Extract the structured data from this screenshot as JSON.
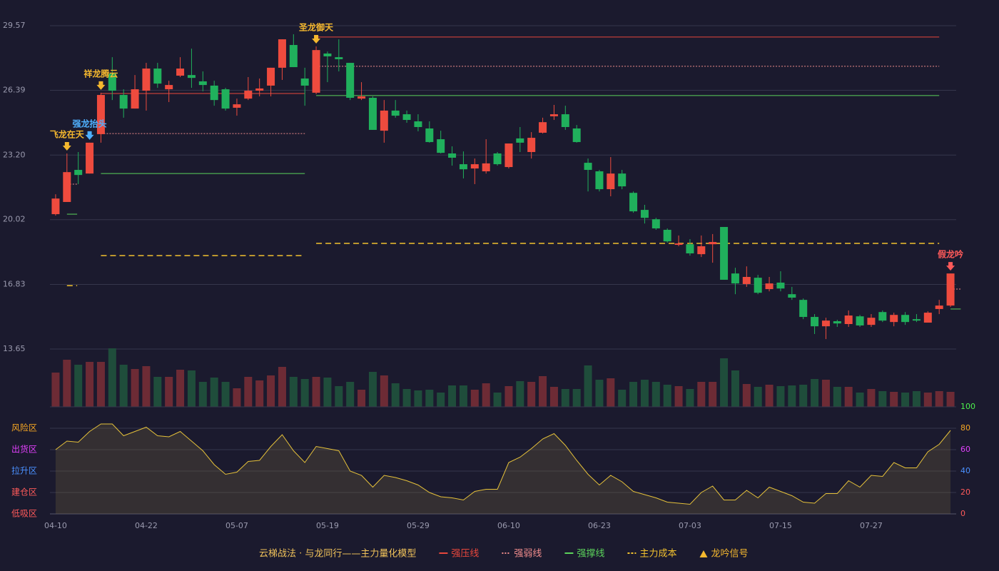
{
  "chart_data": [
    {
      "type": "candlestick",
      "legend_title": "云梯战法 · 与龙同行——主力量化模型",
      "categories": [
        "04-10",
        null,
        null,
        null,
        null,
        null,
        null,
        null,
        "04-22",
        null,
        null,
        null,
        null,
        null,
        null,
        null,
        "05-07",
        null,
        null,
        null,
        null,
        null,
        null,
        null,
        "05-19",
        null,
        null,
        null,
        null,
        null,
        null,
        null,
        "05-29",
        null,
        null,
        null,
        null,
        null,
        null,
        null,
        "06-10",
        null,
        null,
        null,
        null,
        null,
        null,
        null,
        "06-23",
        null,
        null,
        null,
        null,
        null,
        null,
        null,
        "07-03",
        null,
        null,
        null,
        null,
        null,
        null,
        null,
        "07-15",
        null,
        null,
        null,
        null,
        null,
        null,
        null,
        "07-27",
        null,
        null,
        null,
        null,
        null,
        null,
        null
      ],
      "ohlc": [
        [
          20.29,
          21.06,
          20.22,
          21.27
        ],
        [
          20.89,
          22.36,
          20.89,
          23.28
        ],
        [
          22.47,
          22.22,
          21.77,
          23.35
        ],
        [
          22.29,
          23.81,
          22.29,
          23.81
        ],
        [
          24.23,
          26.16,
          23.81,
          26.27
        ],
        [
          27.21,
          26.37,
          25.91,
          28.02
        ],
        [
          26.16,
          25.49,
          25.04,
          26.44
        ],
        [
          25.49,
          26.44,
          25.49,
          27.14
        ],
        [
          26.37,
          27.46,
          25.39,
          27.74
        ],
        [
          27.46,
          26.72,
          26.51,
          27.74
        ],
        [
          26.44,
          26.65,
          25.81,
          26.86
        ],
        [
          27.11,
          27.46,
          27.04,
          28.02
        ],
        [
          27.14,
          27.0,
          26.51,
          28.44
        ],
        [
          26.83,
          26.65,
          26.34,
          27.32
        ],
        [
          26.62,
          25.91,
          25.63,
          26.86
        ],
        [
          26.44,
          25.49,
          25.39,
          26.51
        ],
        [
          25.53,
          25.7,
          25.14,
          25.98
        ],
        [
          25.98,
          26.37,
          25.91,
          27.04
        ],
        [
          26.37,
          26.48,
          26.09,
          26.97
        ],
        [
          26.62,
          27.5,
          26.09,
          27.5
        ],
        [
          27.5,
          28.9,
          26.9,
          28.9
        ],
        [
          28.62,
          27.53,
          27.53,
          29.15
        ],
        [
          26.97,
          26.62,
          25.63,
          27.5
        ],
        [
          26.27,
          28.37,
          26.2,
          28.55
        ],
        [
          28.2,
          28.06,
          26.79,
          28.3
        ],
        [
          28.02,
          27.92,
          27.32,
          28.9
        ],
        [
          27.74,
          26.02,
          25.91,
          27.74
        ],
        [
          25.98,
          26.09,
          25.91,
          26.79
        ],
        [
          26.02,
          24.44,
          24.44,
          26.09
        ],
        [
          24.4,
          25.39,
          23.81,
          25.91
        ],
        [
          25.39,
          25.14,
          25.04,
          25.91
        ],
        [
          25.21,
          24.93,
          24.79,
          25.39
        ],
        [
          24.86,
          24.58,
          24.37,
          25.21
        ],
        [
          24.51,
          23.84,
          23.81,
          24.86
        ],
        [
          23.98,
          23.31,
          23.28,
          24.4
        ],
        [
          23.28,
          23.07,
          22.68,
          23.63
        ],
        [
          22.75,
          22.5,
          22.05,
          23.38
        ],
        [
          22.54,
          22.75,
          21.77,
          23.03
        ],
        [
          22.4,
          22.79,
          22.29,
          23.98
        ],
        [
          23.28,
          22.75,
          22.68,
          23.35
        ],
        [
          22.61,
          23.77,
          22.54,
          23.77
        ],
        [
          24.02,
          23.81,
          23.35,
          24.58
        ],
        [
          23.35,
          24.05,
          23.03,
          24.33
        ],
        [
          24.3,
          24.82,
          24.26,
          25.04
        ],
        [
          25.11,
          25.21,
          24.93,
          25.67
        ],
        [
          25.21,
          24.58,
          24.44,
          25.63
        ],
        [
          24.51,
          23.84,
          23.81,
          24.68
        ],
        [
          22.82,
          22.47,
          21.41,
          23.03
        ],
        [
          22.4,
          21.52,
          21.41,
          22.47
        ],
        [
          21.52,
          22.29,
          21.17,
          23.1
        ],
        [
          22.29,
          21.66,
          21.52,
          22.47
        ],
        [
          21.34,
          20.43,
          20.36,
          21.41
        ],
        [
          20.5,
          20.11,
          19.83,
          20.75
        ],
        [
          20.04,
          19.59,
          19.52,
          20.11
        ],
        [
          19.52,
          18.95,
          18.88,
          19.59
        ],
        [
          18.78,
          18.85,
          18.71,
          19.24
        ],
        [
          18.81,
          18.36,
          18.25,
          19.06
        ],
        [
          18.32,
          18.71,
          18.18,
          19.24
        ],
        [
          18.81,
          18.92,
          17.9,
          19.31
        ],
        [
          19.66,
          17.06,
          17.06,
          19.66
        ],
        [
          17.37,
          16.88,
          16.35,
          17.65
        ],
        [
          16.85,
          17.2,
          16.71,
          17.72
        ],
        [
          17.16,
          16.42,
          16.35,
          17.3
        ],
        [
          16.6,
          16.88,
          16.49,
          17.2
        ],
        [
          16.92,
          16.63,
          16.49,
          17.48
        ],
        [
          16.35,
          16.18,
          16.07,
          16.71
        ],
        [
          16.07,
          15.23,
          15.12,
          16.14
        ],
        [
          15.23,
          14.77,
          14.39,
          15.37
        ],
        [
          14.77,
          15.05,
          14.14,
          15.19
        ],
        [
          15.02,
          14.91,
          14.74,
          15.09
        ],
        [
          14.88,
          15.3,
          14.74,
          15.55
        ],
        [
          15.26,
          14.81,
          14.74,
          15.33
        ],
        [
          14.84,
          15.19,
          14.74,
          15.37
        ],
        [
          15.47,
          15.05,
          14.98,
          15.55
        ],
        [
          14.98,
          15.33,
          14.77,
          15.44
        ],
        [
          15.33,
          14.98,
          14.84,
          15.47
        ],
        [
          15.12,
          15.05,
          14.98,
          15.37
        ],
        [
          14.95,
          15.44,
          14.95,
          15.51
        ],
        [
          15.62,
          15.79,
          15.37,
          16.07
        ],
        [
          15.79,
          17.37,
          15.72,
          17.37
        ]
      ],
      "up_color": "#ee4b3e",
      "down_color": "#20b05c",
      "ylim": [
        13.65,
        29.57
      ],
      "yticks": [
        13.65,
        16.83,
        {
          "value": 20.02,
          "label": "20.02"
        },
        {
          "value": 23.2,
          "label": "23.20"
        },
        26.39,
        29.57
      ],
      "grid": true,
      "levels": [
        {
          "name": "强压线",
          "color": "#e8473c",
          "dash": "solid",
          "values": [
            null,
            null,
            null,
            null,
            26.23,
            26.23,
            26.23,
            26.23,
            26.23,
            26.23,
            26.23,
            26.23,
            26.23,
            26.23,
            26.23,
            26.23,
            26.23,
            26.23,
            26.23,
            26.23,
            26.23,
            26.23,
            26.23,
            29.01,
            29.01,
            29.01,
            29.01,
            29.01,
            29.01,
            29.01,
            29.01,
            29.01,
            29.01,
            29.01,
            29.01,
            29.01,
            29.01,
            29.01,
            29.01,
            29.01,
            29.01,
            29.01,
            29.01,
            29.01,
            29.01,
            29.01,
            29.01,
            29.01,
            29.01,
            29.01,
            29.01,
            29.01,
            29.01,
            29.01,
            29.01,
            29.01,
            29.01,
            29.01,
            29.01,
            29.01,
            29.01,
            29.01,
            29.01,
            29.01,
            29.01,
            29.01,
            29.01,
            29.01,
            29.01,
            29.01,
            29.01,
            29.01,
            29.01,
            29.01,
            29.01,
            29.01,
            29.01,
            29.01,
            29.01,
            null
          ]
        },
        {
          "name": "强弱线",
          "color": "#f08c8c",
          "dash": "dot",
          "values": [
            null,
            21.77,
            null,
            null,
            24.26,
            24.26,
            24.26,
            24.26,
            24.26,
            24.26,
            24.26,
            24.26,
            24.26,
            24.26,
            24.26,
            24.26,
            24.26,
            24.26,
            24.26,
            24.26,
            24.26,
            24.26,
            24.26,
            27.57,
            27.57,
            27.57,
            27.57,
            27.57,
            27.57,
            27.57,
            27.57,
            27.57,
            27.57,
            27.57,
            27.57,
            27.57,
            27.57,
            27.57,
            27.57,
            27.57,
            27.57,
            27.57,
            27.57,
            27.57,
            27.57,
            27.57,
            27.57,
            27.57,
            27.57,
            27.57,
            27.57,
            27.57,
            27.57,
            27.57,
            27.57,
            27.57,
            27.57,
            27.57,
            27.57,
            27.57,
            27.57,
            27.57,
            27.57,
            27.57,
            27.57,
            27.57,
            27.57,
            27.57,
            27.57,
            27.57,
            27.57,
            27.57,
            27.57,
            27.57,
            27.57,
            27.57,
            27.57,
            27.57,
            27.57,
            16.6
          ]
        },
        {
          "name": "强撑线",
          "color": "#5bd35b",
          "dash": "solid",
          "values": [
            null,
            20.29,
            null,
            null,
            22.29,
            22.29,
            22.29,
            22.29,
            22.29,
            22.29,
            22.29,
            22.29,
            22.29,
            22.29,
            22.29,
            22.29,
            22.29,
            22.29,
            22.29,
            22.29,
            22.29,
            22.29,
            22.29,
            26.13,
            26.13,
            26.13,
            26.13,
            26.13,
            26.13,
            26.13,
            26.13,
            26.13,
            26.13,
            26.13,
            26.13,
            26.13,
            26.13,
            26.13,
            26.13,
            26.13,
            26.13,
            26.13,
            26.13,
            26.13,
            26.13,
            26.13,
            26.13,
            26.13,
            26.13,
            26.13,
            26.13,
            26.13,
            26.13,
            26.13,
            26.13,
            26.13,
            26.13,
            26.13,
            26.13,
            26.13,
            26.13,
            26.13,
            26.13,
            26.13,
            26.13,
            26.13,
            26.13,
            26.13,
            26.13,
            26.13,
            26.13,
            26.13,
            26.13,
            26.13,
            26.13,
            26.13,
            26.13,
            26.13,
            26.13,
            15.62
          ]
        },
        {
          "name": "主力成本",
          "color": "#f2c12e",
          "dash": "dash",
          "values": [
            null,
            16.77,
            null,
            null,
            18.25,
            18.25,
            18.25,
            18.25,
            18.25,
            18.25,
            18.25,
            18.25,
            18.25,
            18.25,
            18.25,
            18.25,
            18.25,
            18.25,
            18.25,
            18.25,
            18.25,
            18.25,
            18.25,
            18.85,
            18.85,
            18.85,
            18.85,
            18.85,
            18.85,
            18.85,
            18.85,
            18.85,
            18.85,
            18.85,
            18.85,
            18.85,
            18.85,
            18.85,
            18.85,
            18.85,
            18.85,
            18.85,
            18.85,
            18.85,
            18.85,
            18.85,
            18.85,
            18.85,
            18.85,
            18.85,
            18.85,
            18.85,
            18.85,
            18.85,
            18.85,
            18.85,
            18.85,
            18.85,
            18.85,
            18.85,
            18.85,
            18.85,
            18.85,
            18.85,
            18.85,
            18.85,
            18.85,
            18.85,
            18.85,
            18.85,
            18.85,
            18.85,
            18.85,
            18.85,
            18.85,
            18.85,
            18.85,
            18.85,
            18.85,
            null
          ]
        }
      ],
      "signals": [
        {
          "label": "飞龙在天",
          "candle": 1,
          "color": "#f5b82e"
        },
        {
          "label": "强龙抬头",
          "candle": 3,
          "color": "#4fb0ff"
        },
        {
          "label": "祥龙腾云",
          "candle": 4,
          "color": "#f5b82e"
        },
        {
          "label": "圣龙御天",
          "candle": 23,
          "color": "#f5b82e"
        },
        {
          "label": "假龙吟",
          "candle": 79,
          "color": "#ff5a5a"
        }
      ],
      "signal_legend": {
        "label": "龙吟信号",
        "color": "#f5b82e"
      }
    },
    {
      "type": "volume",
      "values": [
        48,
        66,
        59,
        63,
        63,
        82,
        59,
        53,
        57,
        42,
        42,
        52,
        51,
        35,
        41,
        35,
        26,
        42,
        37,
        44,
        56,
        42,
        39,
        42,
        41,
        29,
        35,
        24,
        49,
        44,
        33,
        25,
        23,
        24,
        20,
        30,
        30,
        24,
        33,
        20,
        29,
        36,
        35,
        43,
        28,
        25,
        25,
        58,
        38,
        40,
        24,
        35,
        38,
        35,
        31,
        29,
        25,
        35,
        35,
        68,
        51,
        32,
        28,
        31,
        29,
        30,
        31,
        39,
        38,
        28,
        28,
        20,
        25,
        22,
        21,
        20,
        22,
        20,
        22,
        21
      ],
      "up_color": "#6d2b35",
      "down_color": "#1f4d3b"
    },
    {
      "type": "line",
      "values": [
        60,
        68,
        67,
        77,
        84,
        84,
        73,
        77,
        81,
        73,
        72,
        77,
        68,
        59,
        46,
        37,
        39,
        49,
        50,
        63,
        74,
        59,
        48,
        63,
        61,
        59,
        40,
        36,
        25,
        36,
        34,
        31,
        27,
        20,
        16,
        15,
        13,
        21,
        23,
        23,
        48,
        53,
        61,
        70,
        75,
        64,
        50,
        37,
        27,
        36,
        30,
        21,
        18,
        15,
        11,
        10,
        9,
        20,
        26,
        13,
        13,
        22,
        15,
        25,
        21,
        17,
        11,
        10,
        19,
        19,
        31,
        25,
        36,
        35,
        48,
        43,
        43,
        58,
        65,
        78
      ],
      "color": "#e5c13a",
      "ylim": [
        0,
        100
      ],
      "yticks": [
        0,
        20,
        40,
        60,
        80,
        100
      ],
      "ytick_colors": [
        "#ff5a5a",
        "#ff5a5a",
        "#4a90ff",
        "#e040fb",
        "#f5a623",
        "#4cf04c"
      ],
      "zones": [
        {
          "label": "低吸区",
          "value": 0,
          "color": "#ff5a5a"
        },
        {
          "label": "建仓区",
          "value": 20,
          "color": "#ff5a5a"
        },
        {
          "label": "拉升区",
          "value": 40,
          "color": "#4a90ff"
        },
        {
          "label": "出货区",
          "value": 60,
          "color": "#e040fb"
        },
        {
          "label": "风险区",
          "value": 80,
          "color": "#f5a623"
        }
      ]
    }
  ]
}
